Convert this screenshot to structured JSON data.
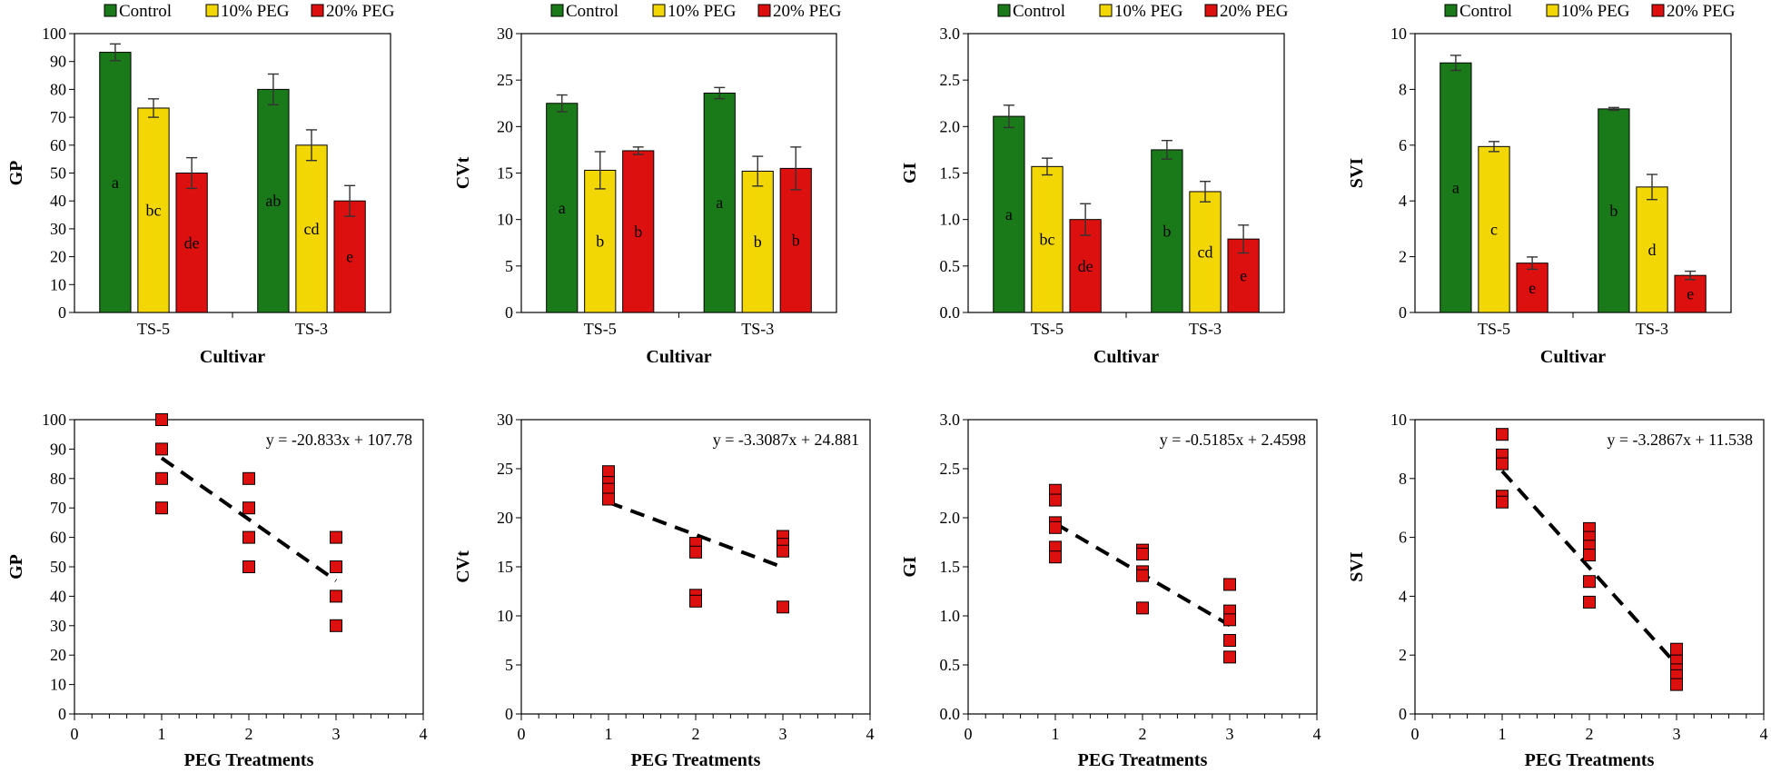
{
  "colors": {
    "control": "#1a7a1a",
    "peg10": "#f2d705",
    "peg20": "#dd1010",
    "marker": "#dd1010",
    "trend": "#000000"
  },
  "chart_data": [
    {
      "type": "bar",
      "name": "gp-bar",
      "ylabel": "GP",
      "xlabel": "Cultivar",
      "categories": [
        "TS-5",
        "TS-3"
      ],
      "ylim": [
        0,
        100
      ],
      "yticks": [
        0,
        10,
        20,
        30,
        40,
        50,
        60,
        70,
        80,
        90,
        100
      ],
      "tickdec": 0,
      "legend": [
        "Control",
        "10% PEG",
        "20% PEG"
      ],
      "legend_position": "top",
      "series": [
        {
          "name": "Control",
          "color": "#1a7a1a",
          "values": [
            93.3,
            80
          ],
          "errors": [
            3,
            5.5
          ],
          "letters": [
            "a",
            "ab"
          ]
        },
        {
          "name": "10% PEG",
          "color": "#f2d705",
          "values": [
            73.3,
            60
          ],
          "errors": [
            3.3,
            5.5
          ],
          "letters": [
            "bc",
            "cd"
          ]
        },
        {
          "name": "20% PEG",
          "color": "#dd1010",
          "values": [
            50,
            40
          ],
          "errors": [
            5.5,
            5.5
          ],
          "letters": [
            "de",
            "e"
          ]
        }
      ]
    },
    {
      "type": "bar",
      "name": "cvt-bar",
      "ylabel": "CVt",
      "xlabel": "Cultivar",
      "categories": [
        "TS-5",
        "TS-3"
      ],
      "ylim": [
        0,
        30
      ],
      "yticks": [
        0,
        5,
        10,
        15,
        20,
        25,
        30
      ],
      "tickdec": 0,
      "legend": [
        "Control",
        "10% PEG",
        "20% PEG"
      ],
      "legend_position": "top",
      "series": [
        {
          "name": "Control",
          "color": "#1a7a1a",
          "values": [
            22.5,
            23.6
          ],
          "errors": [
            0.9,
            0.6
          ],
          "letters": [
            "a",
            "a"
          ]
        },
        {
          "name": "10% PEG",
          "color": "#f2d705",
          "values": [
            15.3,
            15.2
          ],
          "errors": [
            2,
            1.6
          ],
          "letters": [
            "b",
            "b"
          ]
        },
        {
          "name": "20% PEG",
          "color": "#dd1010",
          "values": [
            17.4,
            15.5
          ],
          "errors": [
            0.4,
            2.3
          ],
          "letters": [
            "b",
            "b"
          ]
        }
      ]
    },
    {
      "type": "bar",
      "name": "gi-bar",
      "ylabel": "GI",
      "xlabel": "Cultivar",
      "categories": [
        "TS-5",
        "TS-3"
      ],
      "ylim": [
        0,
        3
      ],
      "yticks": [
        0,
        0.5,
        1,
        1.5,
        2,
        2.5,
        3
      ],
      "tickdec": 1,
      "legend": [
        "Control",
        "10% PEG",
        "20% PEG"
      ],
      "legend_position": "top",
      "series": [
        {
          "name": "Control",
          "color": "#1a7a1a",
          "values": [
            2.11,
            1.75
          ],
          "errors": [
            0.12,
            0.1
          ],
          "letters": [
            "a",
            "b"
          ]
        },
        {
          "name": "10% PEG",
          "color": "#f2d705",
          "values": [
            1.57,
            1.3
          ],
          "errors": [
            0.09,
            0.11
          ],
          "letters": [
            "bc",
            "cd"
          ]
        },
        {
          "name": "20% PEG",
          "color": "#dd1010",
          "values": [
            1,
            0.79
          ],
          "errors": [
            0.17,
            0.15
          ],
          "letters": [
            "de",
            "e"
          ]
        }
      ]
    },
    {
      "type": "bar",
      "name": "svi-bar",
      "ylabel": "SVI",
      "xlabel": "Cultivar",
      "categories": [
        "TS-5",
        "TS-3"
      ],
      "ylim": [
        0,
        10
      ],
      "yticks": [
        0,
        2,
        4,
        6,
        8,
        10
      ],
      "tickdec": 0,
      "legend": [
        "Control",
        "10% PEG",
        "20% PEG"
      ],
      "legend_position": "top",
      "series": [
        {
          "name": "Control",
          "color": "#1a7a1a",
          "values": [
            8.95,
            7.3
          ],
          "errors": [
            0.27,
            0.05
          ],
          "letters": [
            "a",
            "b"
          ]
        },
        {
          "name": "10% PEG",
          "color": "#f2d705",
          "values": [
            5.95,
            4.5
          ],
          "errors": [
            0.18,
            0.45
          ],
          "letters": [
            "c",
            "d"
          ]
        },
        {
          "name": "20% PEG",
          "color": "#dd1010",
          "values": [
            1.77,
            1.33
          ],
          "errors": [
            0.22,
            0.15
          ],
          "letters": [
            "e",
            "e"
          ]
        }
      ]
    },
    {
      "type": "scatter",
      "name": "gp-scatter",
      "ylabel": "GP",
      "xlabel": "PEG Treatments",
      "xlim": [
        0,
        4
      ],
      "xticks": [
        0,
        1,
        2,
        3,
        4
      ],
      "ylim": [
        0,
        100
      ],
      "yticks": [
        0,
        10,
        20,
        30,
        40,
        50,
        60,
        70,
        80,
        90,
        100
      ],
      "tickdec": 0,
      "points": [
        [
          1,
          100
        ],
        [
          1,
          90
        ],
        [
          1,
          80
        ],
        [
          1,
          70
        ],
        [
          2,
          80
        ],
        [
          2,
          70
        ],
        [
          2,
          60
        ],
        [
          2,
          50
        ],
        [
          3,
          60
        ],
        [
          3,
          50
        ],
        [
          3,
          40
        ],
        [
          3,
          30
        ]
      ],
      "trend": {
        "slope": -20.833,
        "intercept": 107.78,
        "xrange": [
          1,
          3
        ]
      },
      "equation": "y = -20.833x + 107.78"
    },
    {
      "type": "scatter",
      "name": "cvt-scatter",
      "ylabel": "CVt",
      "xlabel": "PEG Treatments",
      "xlim": [
        0,
        4
      ],
      "xticks": [
        0,
        1,
        2,
        3,
        4
      ],
      "ylim": [
        0,
        30
      ],
      "yticks": [
        0,
        5,
        10,
        15,
        20,
        25,
        30
      ],
      "tickdec": 0,
      "points": [
        [
          1,
          24.7
        ],
        [
          1,
          23.6
        ],
        [
          1,
          22.9
        ],
        [
          1,
          21.9
        ],
        [
          2,
          17.4
        ],
        [
          2,
          16.5
        ],
        [
          2,
          12.1
        ],
        [
          2,
          11.5
        ],
        [
          3,
          18.1
        ],
        [
          3,
          17.3
        ],
        [
          3,
          16.6
        ],
        [
          3,
          10.9
        ]
      ],
      "trend": {
        "slope": -3.3087,
        "intercept": 24.881,
        "xrange": [
          1,
          3
        ]
      },
      "equation": "y = -3.3087x + 24.881"
    },
    {
      "type": "scatter",
      "name": "gi-scatter",
      "ylabel": "GI",
      "xlabel": "PEG Treatments",
      "xlim": [
        0,
        4
      ],
      "xticks": [
        0,
        1,
        2,
        3,
        4
      ],
      "ylim": [
        0,
        3
      ],
      "yticks": [
        0,
        0.5,
        1,
        1.5,
        2,
        2.5,
        3
      ],
      "tickdec": 1,
      "points": [
        [
          1,
          2.28
        ],
        [
          1,
          2.18
        ],
        [
          1,
          1.95
        ],
        [
          1,
          1.9
        ],
        [
          1,
          1.7
        ],
        [
          1,
          1.6
        ],
        [
          2,
          1.67
        ],
        [
          2,
          1.63
        ],
        [
          2,
          1.45
        ],
        [
          2,
          1.41
        ],
        [
          2,
          1.08
        ],
        [
          3,
          1.32
        ],
        [
          3,
          1.05
        ],
        [
          3,
          0.96
        ],
        [
          3,
          0.75
        ],
        [
          3,
          0.58
        ]
      ],
      "trend": {
        "slope": -0.5185,
        "intercept": 2.4598,
        "xrange": [
          1,
          3
        ]
      },
      "equation": "y = -0.5185x + 2.4598"
    },
    {
      "type": "scatter",
      "name": "svi-scatter",
      "ylabel": "SVI",
      "xlabel": "PEG Treatments",
      "xlim": [
        0,
        4
      ],
      "xticks": [
        0,
        1,
        2,
        3,
        4
      ],
      "ylim": [
        0,
        10
      ],
      "yticks": [
        0,
        2,
        4,
        6,
        8,
        10
      ],
      "tickdec": 0,
      "points": [
        [
          1,
          9.5
        ],
        [
          1,
          8.8
        ],
        [
          1,
          8.5
        ],
        [
          1,
          7.4
        ],
        [
          1,
          7.2
        ],
        [
          2,
          6.3
        ],
        [
          2,
          6
        ],
        [
          2,
          5.7
        ],
        [
          2,
          5.4
        ],
        [
          2,
          4.5
        ],
        [
          2,
          3.8
        ],
        [
          3,
          2.2
        ],
        [
          3,
          1.8
        ],
        [
          3,
          1.5
        ],
        [
          3,
          1.3
        ],
        [
          3,
          1
        ]
      ],
      "trend": {
        "slope": -3.2867,
        "intercept": 11.538,
        "xrange": [
          1,
          3
        ]
      },
      "equation": "y = -3.2867x + 11.538"
    }
  ]
}
